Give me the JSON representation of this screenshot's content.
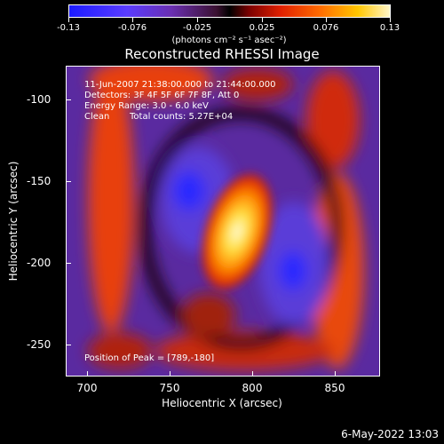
{
  "colorbar": {
    "ticks": [
      "-0.13",
      "-0.076",
      "-0.025",
      "0.025",
      "0.076",
      "0.13"
    ],
    "units": "(photons cm⁻² s⁻¹ asec⁻²)"
  },
  "plot": {
    "title": "Reconstructed RHESSI Image",
    "xlabel": "Heliocentric X (arcsec)",
    "ylabel": "Heliocentric Y (arcsec)",
    "xticks": [
      "700",
      "750",
      "800",
      "850"
    ],
    "yticks": [
      "-100",
      "-150",
      "-200",
      "-250"
    ],
    "xlim": [
      688,
      878
    ],
    "ylim": [
      -270,
      -82
    ]
  },
  "info": {
    "time": "11-Jun-2007 21:38:00.000 to 21:44:00.000",
    "detectors": "Detectors: 3F 4F 5F 6F 7F 8F, Att 0",
    "energy": "Energy Range: 3.0 - 6.0 keV",
    "method": "Clean",
    "counts": "Total counts: 5.27E+04",
    "peak": "Position of Peak = [789,-180]"
  },
  "datestamp": "6-May-2022 13:03"
}
